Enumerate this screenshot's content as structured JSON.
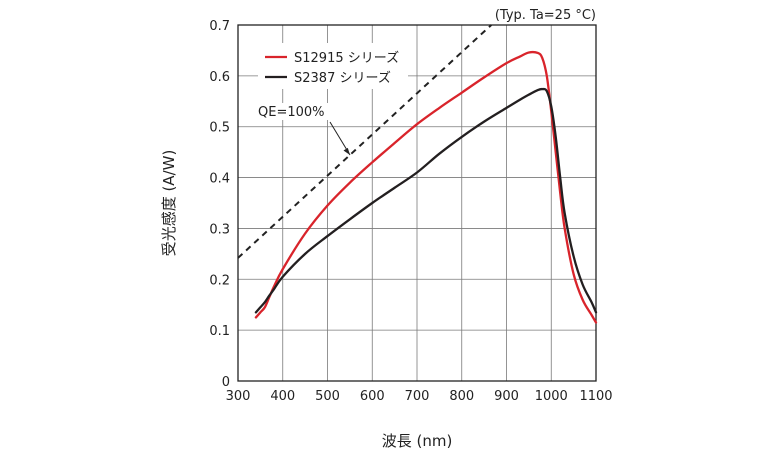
{
  "chart_data": {
    "type": "line",
    "note": "(Typ. Ta=25 °C)",
    "xlabel": "波長 (nm)",
    "ylabel": "受光感度 (A/W)",
    "xlim": [
      300,
      1100
    ],
    "ylim": [
      0,
      0.7
    ],
    "xticks": [
      300,
      400,
      500,
      600,
      700,
      800,
      900,
      1000,
      1100
    ],
    "yticks": [
      0,
      0.1,
      0.2,
      0.3,
      0.4,
      0.5,
      0.6,
      0.7
    ],
    "grid": true,
    "legend_position": "top-left",
    "series": [
      {
        "name": "S12915 シリーズ",
        "color": "#d9242b",
        "style": "solid",
        "x": [
          340,
          350,
          360,
          370,
          380,
          400,
          450,
          500,
          550,
          600,
          650,
          700,
          750,
          800,
          850,
          900,
          930,
          950,
          970,
          980,
          990,
          1000,
          1010,
          1020,
          1030,
          1050,
          1070,
          1090,
          1100
        ],
        "y": [
          0.125,
          0.135,
          0.145,
          0.165,
          0.185,
          0.22,
          0.29,
          0.345,
          0.39,
          0.43,
          0.468,
          0.505,
          0.537,
          0.567,
          0.597,
          0.625,
          0.638,
          0.646,
          0.645,
          0.635,
          0.6,
          0.53,
          0.45,
          0.37,
          0.3,
          0.21,
          0.16,
          0.13,
          0.115
        ]
      },
      {
        "name": "S2387  シリーズ",
        "color": "#231f20",
        "style": "solid",
        "x": [
          340,
          350,
          360,
          370,
          380,
          400,
          450,
          500,
          550,
          600,
          650,
          700,
          750,
          800,
          850,
          900,
          930,
          950,
          970,
          980,
          990,
          1000,
          1010,
          1020,
          1030,
          1050,
          1070,
          1090,
          1100
        ],
        "y": [
          0.135,
          0.145,
          0.155,
          0.168,
          0.18,
          0.205,
          0.25,
          0.285,
          0.318,
          0.35,
          0.38,
          0.41,
          0.447,
          0.48,
          0.51,
          0.537,
          0.553,
          0.563,
          0.572,
          0.574,
          0.57,
          0.54,
          0.48,
          0.4,
          0.33,
          0.245,
          0.19,
          0.155,
          0.135
        ]
      },
      {
        "name": "QE=100%",
        "color": "#222222",
        "style": "dashed",
        "x": [
          300,
          866
        ],
        "y": [
          0.242,
          0.7
        ]
      }
    ]
  }
}
